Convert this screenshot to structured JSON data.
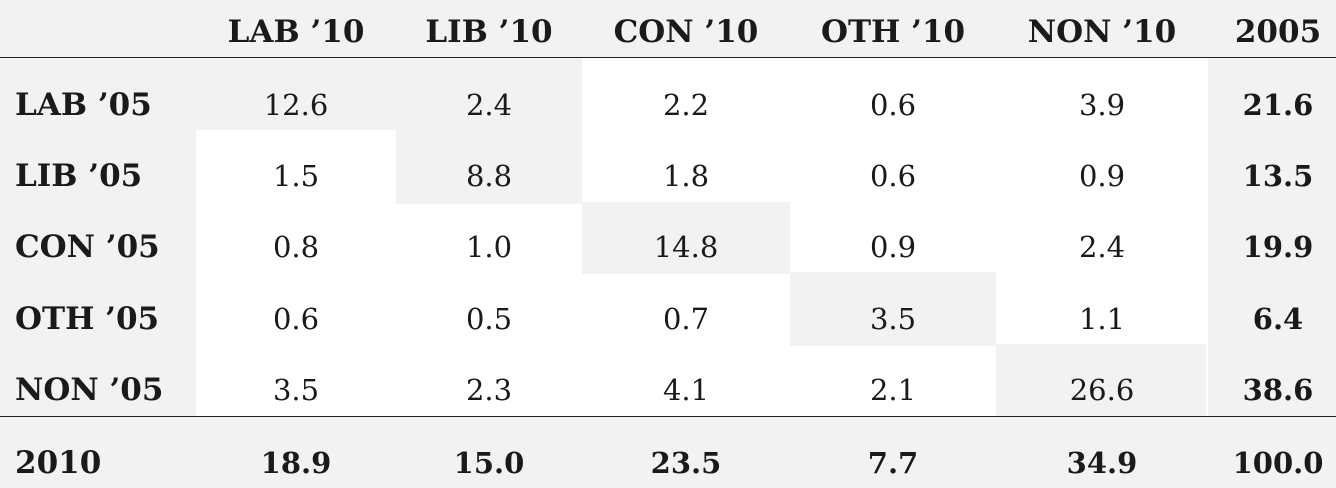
{
  "col_headers": [
    "LAB ’10",
    "LIB ’10",
    "CON ’10",
    "OTH ’10",
    "NON ’10",
    "2005"
  ],
  "rows": [
    {
      "label": "LAB ’05",
      "values": [
        "12.6",
        "2.4",
        "2.2",
        "0.6",
        "3.9"
      ],
      "total": "21.6"
    },
    {
      "label": "LIB ’05",
      "values": [
        "1.5",
        "8.8",
        "1.8",
        "0.6",
        "0.9"
      ],
      "total": "13.5"
    },
    {
      "label": "CON ’05",
      "values": [
        "0.8",
        "1.0",
        "14.8",
        "0.9",
        "2.4"
      ],
      "total": "19.9"
    },
    {
      "label": "OTH ’05",
      "values": [
        "0.6",
        "0.5",
        "0.7",
        "3.5",
        "1.1"
      ],
      "total": "6.4"
    },
    {
      "label": "NON ’05",
      "values": [
        "3.5",
        "2.3",
        "4.1",
        "2.1",
        "26.6"
      ],
      "total": "38.6"
    }
  ],
  "footer": {
    "label": "2010",
    "values": [
      "18.9",
      "15.0",
      "23.5",
      "7.7",
      "34.9"
    ],
    "total": "100.0"
  },
  "colors": {
    "shade": "#f2f2f2",
    "text": "#1a1a1a",
    "rule": "#222222"
  }
}
